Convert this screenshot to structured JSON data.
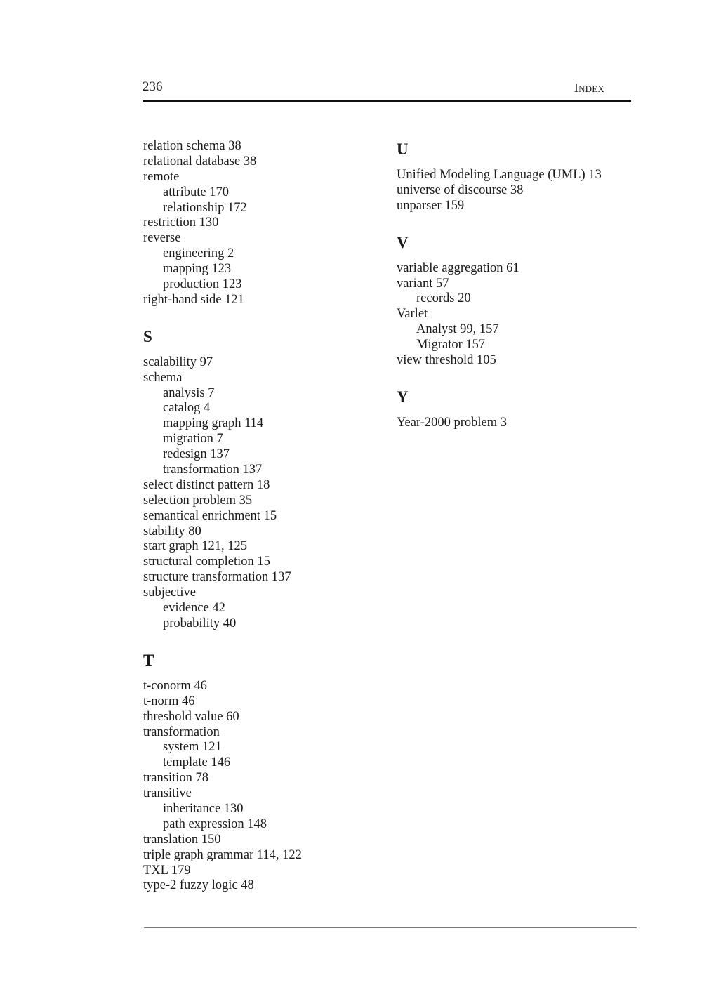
{
  "header": {
    "page_number": "236",
    "title": "Index"
  },
  "columns": [
    {
      "sections": [
        {
          "letter": "",
          "entries": [
            {
              "text": "relation schema 38",
              "level": 0
            },
            {
              "text": "relational database 38",
              "level": 0
            },
            {
              "text": "remote",
              "level": 0
            },
            {
              "text": "attribute 170",
              "level": 1
            },
            {
              "text": "relationship 172",
              "level": 1
            },
            {
              "text": "restriction 130",
              "level": 0
            },
            {
              "text": "reverse",
              "level": 0
            },
            {
              "text": "engineering 2",
              "level": 1
            },
            {
              "text": "mapping 123",
              "level": 1
            },
            {
              "text": "production 123",
              "level": 1
            },
            {
              "text": "right-hand side 121",
              "level": 0
            }
          ]
        },
        {
          "letter": "S",
          "entries": [
            {
              "text": "scalability 97",
              "level": 0
            },
            {
              "text": "schema",
              "level": 0
            },
            {
              "text": "analysis 7",
              "level": 1
            },
            {
              "text": "catalog 4",
              "level": 1
            },
            {
              "text": "mapping graph 114",
              "level": 1
            },
            {
              "text": "migration 7",
              "level": 1
            },
            {
              "text": "redesign 137",
              "level": 1
            },
            {
              "text": "transformation 137",
              "level": 1
            },
            {
              "text": "select distinct pattern 18",
              "level": 0
            },
            {
              "text": "selection problem 35",
              "level": 0
            },
            {
              "text": "semantical enrichment 15",
              "level": 0
            },
            {
              "text": "stability 80",
              "level": 0
            },
            {
              "text": "start graph 121, 125",
              "level": 0
            },
            {
              "text": "structural completion 15",
              "level": 0
            },
            {
              "text": "structure transformation 137",
              "level": 0
            },
            {
              "text": "subjective",
              "level": 0
            },
            {
              "text": "evidence 42",
              "level": 1
            },
            {
              "text": "probability 40",
              "level": 1
            }
          ]
        },
        {
          "letter": "T",
          "entries": [
            {
              "text": "t-conorm 46",
              "level": 0
            },
            {
              "text": "t-norm 46",
              "level": 0
            },
            {
              "text": "threshold value 60",
              "level": 0
            },
            {
              "text": "transformation",
              "level": 0
            },
            {
              "text": "system 121",
              "level": 1
            },
            {
              "text": "template 146",
              "level": 1
            },
            {
              "text": "transition 78",
              "level": 0
            },
            {
              "text": "transitive",
              "level": 0
            },
            {
              "text": "inheritance 130",
              "level": 1
            },
            {
              "text": "path expression 148",
              "level": 1
            },
            {
              "text": "translation 150",
              "level": 0
            },
            {
              "text": "triple graph grammar 114, 122",
              "level": 0
            },
            {
              "text": "TXL 179",
              "level": 0
            },
            {
              "text": "type-2 fuzzy logic 48",
              "level": 0
            }
          ]
        }
      ]
    },
    {
      "sections": [
        {
          "letter": "U",
          "entries": [
            {
              "text": "Unified Modeling Language (UML) 13",
              "level": 0
            },
            {
              "text": "universe of discourse 38",
              "level": 0
            },
            {
              "text": "unparser 159",
              "level": 0
            }
          ]
        },
        {
          "letter": "V",
          "entries": [
            {
              "text": "variable aggregation 61",
              "level": 0
            },
            {
              "text": "variant 57",
              "level": 0
            },
            {
              "text": "records 20",
              "level": 1
            },
            {
              "text": "Varlet",
              "level": 0
            },
            {
              "text": "Analyst 99, 157",
              "level": 1
            },
            {
              "text": "Migrator 157",
              "level": 1
            },
            {
              "text": "view threshold 105",
              "level": 0
            }
          ]
        },
        {
          "letter": "Y",
          "entries": [
            {
              "text": "Year-2000 problem 3",
              "level": 0
            }
          ]
        }
      ]
    }
  ]
}
